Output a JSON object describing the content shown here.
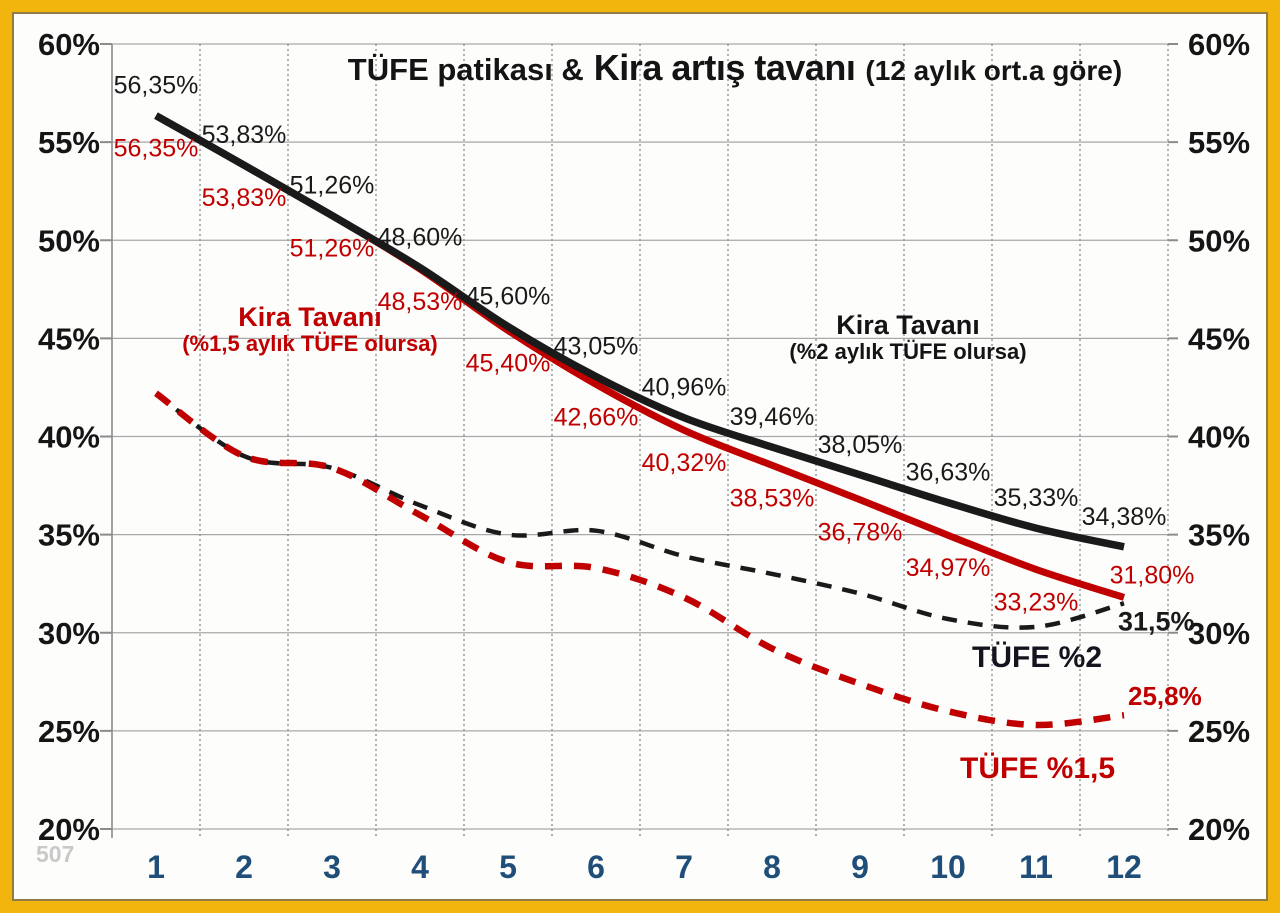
{
  "title": {
    "part1": "TÜFE patikası &",
    "part2": "Kira artış tavanı",
    "part3": "(12 aylık ort.a göre)"
  },
  "annotations": {
    "kira_red": {
      "line1": "Kira Tavanı",
      "line2": "(%1,5 aylık TÜFE olursa)"
    },
    "kira_black": {
      "line1": "Kira Tavanı",
      "line2": "(%2 aylık TÜFE olursa)"
    },
    "tufe2_label": "TÜFE %2",
    "tufe15_label": "TÜFE %1,5"
  },
  "watermark": "507",
  "colors": {
    "red": "#C00000",
    "black": "#1a1a1a",
    "gold_border": "#F2B50D",
    "month_label": "#1F4E79",
    "gridline": "#A8A8A8",
    "axis": "#8c8c8c",
    "tick_label": "#151515",
    "watermark_gray": "#c9c9c9"
  },
  "chart_data": {
    "type": "line",
    "title": "TÜFE patikası & Kira artış tavanı (12 aylık ort.a göre)",
    "x": [
      1,
      2,
      3,
      4,
      5,
      6,
      7,
      8,
      9,
      10,
      11,
      12
    ],
    "x_tick_labels": [
      "1",
      "2",
      "3",
      "4",
      "5",
      "6",
      "7",
      "8",
      "9",
      "10",
      "11",
      "12"
    ],
    "ylim": [
      20,
      60
    ],
    "y_tick_step": 5,
    "y_tick_labels_left": [
      "60%",
      "55%",
      "50%",
      "45%",
      "40%",
      "35%",
      "30%",
      "25%",
      "20%"
    ],
    "y_tick_labels_right": [
      "60%",
      "55%",
      "50%",
      "45%",
      "40%",
      "35%",
      "30%",
      "25%",
      "20%"
    ],
    "grid": "both",
    "legend_position": "inline-annotations",
    "series": [
      {
        "name": "Kira Tavanı (%2 aylık TÜFE olursa)",
        "style": "solid",
        "color": "#1a1a1a",
        "values": [
          56.35,
          53.83,
          51.26,
          48.6,
          45.6,
          43.05,
          40.96,
          39.46,
          38.05,
          36.63,
          35.33,
          34.38
        ],
        "labels": [
          "56,35%",
          "53,83%",
          "51,26%",
          "48,60%",
          "45,60%",
          "43,05%",
          "40,96%",
          "39,46%",
          "38,05%",
          "36,63%",
          "35,33%",
          "34,38%"
        ]
      },
      {
        "name": "Kira Tavanı (%1,5 aylık TÜFE olursa)",
        "style": "solid",
        "color": "#C00000",
        "values": [
          56.35,
          53.83,
          51.26,
          48.53,
          45.4,
          42.66,
          40.32,
          38.53,
          36.78,
          34.97,
          33.23,
          31.8
        ],
        "labels": [
          "56,35%",
          "53,83%",
          "51,26%",
          "48,53%",
          "45,40%",
          "42,66%",
          "40,32%",
          "38,53%",
          "36,78%",
          "34,97%",
          "33,23%",
          "31,80%"
        ]
      },
      {
        "name": "TÜFE %2",
        "style": "dashed",
        "color": "#1a1a1a",
        "values": [
          42.2,
          39.0,
          38.4,
          36.5,
          35.0,
          35.2,
          33.9,
          33.0,
          32.0,
          30.7,
          30.3,
          31.5
        ],
        "values_note": "only final point labeled in chart; intermediate values estimated from gridlines",
        "end_label": "31,5%"
      },
      {
        "name": "TÜFE %1,5",
        "style": "dashed",
        "color": "#C00000",
        "values": [
          42.2,
          39.0,
          38.4,
          36.0,
          33.6,
          33.3,
          31.8,
          29.2,
          27.4,
          26.0,
          25.3,
          25.8
        ],
        "values_note": "only final point labeled in chart; intermediate values estimated from gridlines",
        "end_label": "25,8%"
      }
    ]
  }
}
